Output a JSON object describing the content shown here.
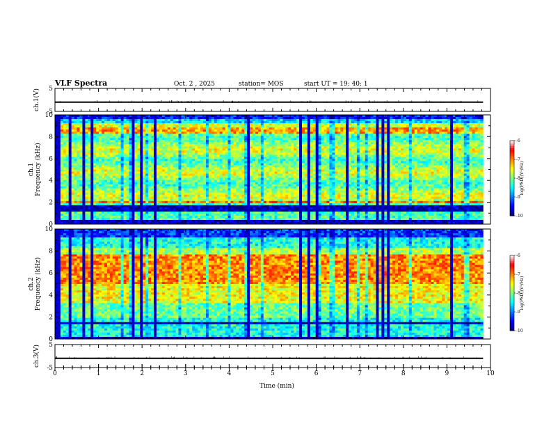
{
  "header": {
    "title": "VLF Spectra",
    "date": "Oct. 2  , 2025",
    "station": "station= MOS",
    "start": "start  UT  =    19: 40: 1"
  },
  "chart_data": {
    "type": "heatmap",
    "xlabel": "Time  (min)",
    "xlim": [
      0,
      10
    ],
    "xticks": [
      "0",
      "1",
      "2",
      "3",
      "4",
      "5",
      "6",
      "7",
      "8",
      "9",
      "10"
    ],
    "data_end_min": 9.83,
    "waveforms": [
      {
        "name": "ch1-waveform",
        "ylabel": "ch.1(V)",
        "ylim": [
          -5,
          5
        ],
        "yticks": [
          "5",
          "-5"
        ],
        "baseline": -1
      },
      {
        "name": "ch3-waveform",
        "ylabel": "ch.3(V)",
        "ylim": [
          -5,
          5
        ],
        "yticks": [
          "5",
          "-5"
        ],
        "baseline": -1
      }
    ],
    "spectrograms": [
      {
        "name": "ch1-spectrogram",
        "ylabel_top": "ch.1",
        "ylabel": "Frequency  (kHz)",
        "ylim": [
          0,
          10
        ],
        "yticks": [
          "0",
          "2",
          "4",
          "6",
          "8",
          "10"
        ],
        "dark_bands_khz": [
          [
            1.2,
            1.7
          ],
          [
            0.0,
            0.3
          ]
        ],
        "bright_bands_khz": [
          [
            1.9,
            2.2
          ],
          [
            8.3,
            8.8
          ]
        ],
        "profile_key": "ch1"
      },
      {
        "name": "ch2-spectrogram",
        "ylabel_top": "ch.2",
        "ylabel": "Frequency  (kHz)",
        "ylim": [
          0,
          10
        ],
        "yticks": [
          "0",
          "2",
          "4",
          "6",
          "8",
          "10"
        ],
        "dark_bands_khz": [
          [
            1.4,
            1.6
          ],
          [
            0.0,
            0.2
          ]
        ],
        "bright_bands_khz": [
          [
            5.0,
            7.5
          ]
        ],
        "profile_key": "ch2"
      }
    ],
    "colorbar": {
      "label": "log(PSD)(V²/Hz)",
      "range": [
        -10,
        -6
      ],
      "ticks": [
        "-6",
        "-7",
        "-8",
        "-9",
        "-10"
      ],
      "colormap": [
        "#00007f",
        "#0000ff",
        "#007fff",
        "#00ffff",
        "#7fff7f",
        "#ffff00",
        "#ff7f00",
        "#ff0000",
        "#ffffff"
      ]
    }
  }
}
